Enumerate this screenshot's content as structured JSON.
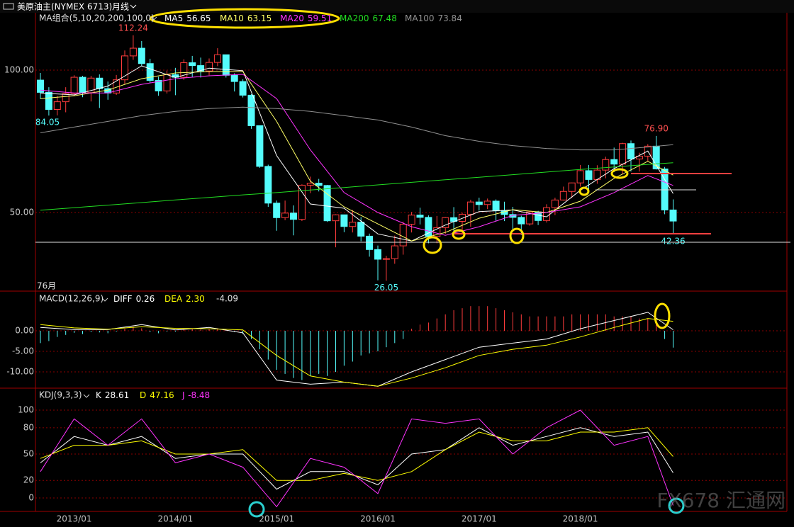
{
  "toolbar": {
    "symbol": "美原油主(NYMEX 6713)",
    "period": "月线"
  },
  "watermark": "FX678 汇通网",
  "chart_data": [
    {
      "type": "candlestick",
      "title": "MA组合(5,10,20,200,100,0)",
      "count_label": "76月",
      "categories": [
        null,
        null,
        null,
        null,
        "2013/01",
        null,
        null,
        null,
        null,
        null,
        null,
        null,
        null,
        null,
        null,
        null,
        "2014/01",
        null,
        null,
        null,
        null,
        null,
        null,
        null,
        null,
        null,
        null,
        null,
        "2015/01",
        null,
        null,
        null,
        null,
        null,
        null,
        null,
        null,
        null,
        null,
        null,
        "2016/01",
        null,
        null,
        null,
        null,
        null,
        null,
        null,
        null,
        null,
        null,
        null,
        "2017/01",
        null,
        null,
        null,
        null,
        null,
        null,
        null,
        null,
        null,
        null,
        null,
        "2018/01",
        null,
        null,
        null,
        null,
        null,
        null,
        null,
        null,
        null,
        null,
        null
      ],
      "open": [
        96.5,
        92.2,
        86.2,
        88.9,
        91.8,
        97.5,
        92.1,
        97.2,
        93.5,
        91.97,
        96.6,
        105.0,
        107.7,
        102.3,
        96.4,
        92.7,
        98.4,
        97.5,
        102.6,
        101.6,
        99.7,
        102.7,
        105.4,
        98.2,
        96.0,
        91.2,
        80.5,
        66.2,
        53.3,
        48.2,
        49.8,
        47.6,
        59.6,
        60.3,
        59.5,
        47.1,
        49.2,
        45.1,
        46.6,
        41.7,
        37.0,
        33.6,
        33.8,
        38.3,
        45.9,
        49.1,
        48.3,
        41.6,
        44.7,
        48.2,
        46.9,
        49.4,
        53.7,
        52.8,
        54.0,
        50.6,
        49.3,
        48.3,
        46.0,
        50.2,
        47.2,
        51.7,
        54.4,
        57.4,
        60.4,
        64.7,
        61.6,
        64.9,
        68.6,
        67.0,
        74.2,
        68.8,
        69.8,
        73.3,
        65.3,
        50.9
      ],
      "high": [
        99.0,
        94.0,
        91.0,
        94.0,
        98.2,
        98.0,
        98.0,
        98.5,
        96.0,
        98.3,
        106.9,
        112.24,
        110.2,
        104.0,
        97.7,
        99.8,
        100.8,
        103.8,
        105.0,
        104.4,
        104.1,
        107.7,
        105.2,
        98.9,
        96.8,
        91.6,
        80.6,
        66.8,
        54.2,
        54.2,
        52.5,
        59.9,
        62.6,
        61.8,
        59.7,
        49.4,
        49.0,
        50.9,
        48.4,
        42.6,
        38.4,
        34.8,
        41.9,
        46.8,
        50.2,
        51.7,
        49.0,
        48.8,
        48.4,
        51.9,
        49.9,
        54.5,
        55.2,
        54.9,
        54.6,
        53.8,
        52.0,
        48.9,
        50.4,
        50.6,
        52.9,
        55.2,
        59.1,
        60.5,
        66.7,
        66.7,
        66.6,
        69.6,
        72.8,
        74.5,
        75.3,
        71.0,
        74.0,
        76.9,
        66.0,
        54.6
      ],
      "low": [
        89.9,
        84.05,
        84.1,
        85.2,
        91.0,
        90.5,
        89.0,
        86.7,
        89.6,
        91.3,
        95.0,
        103.6,
        101.5,
        95.6,
        91.0,
        91.8,
        91.2,
        96.6,
        97.4,
        97.4,
        98.2,
        101.4,
        97.4,
        92.5,
        90.4,
        79.4,
        65.7,
        52.0,
        43.6,
        47.3,
        42.0,
        47.0,
        56.8,
        57.4,
        46.7,
        37.8,
        43.1,
        43.0,
        39.9,
        34.5,
        26.2,
        26.05,
        32.0,
        35.2,
        43.0,
        45.8,
        39.2,
        39.2,
        42.5,
        43.6,
        42.2,
        45.0,
        50.7,
        51.2,
        47.1,
        47.0,
        43.8,
        42.1,
        45.4,
        45.6,
        46.5,
        49.1,
        54.2,
        55.1,
        59.1,
        58.1,
        60.1,
        62.0,
        64.2,
        63.6,
        64.4,
        64.4,
        67.8,
        65.1,
        49.4,
        42.36
      ],
      "close": [
        92.2,
        86.2,
        88.9,
        91.8,
        97.5,
        92.1,
        97.2,
        93.5,
        91.97,
        96.6,
        105.0,
        107.7,
        102.3,
        96.4,
        92.7,
        98.4,
        97.5,
        102.6,
        101.6,
        99.7,
        102.7,
        105.4,
        98.2,
        96.0,
        91.2,
        80.5,
        66.2,
        53.3,
        48.2,
        49.8,
        47.6,
        59.6,
        60.3,
        59.5,
        47.1,
        49.2,
        45.1,
        46.6,
        41.7,
        37.0,
        33.6,
        33.8,
        38.3,
        45.9,
        49.1,
        48.3,
        41.6,
        44.7,
        48.2,
        46.9,
        49.4,
        53.7,
        52.8,
        54.0,
        50.6,
        49.3,
        48.3,
        46.0,
        50.2,
        47.2,
        51.7,
        54.4,
        57.4,
        60.4,
        64.7,
        61.6,
        64.9,
        68.6,
        67.0,
        74.2,
        68.8,
        69.8,
        73.3,
        65.3,
        50.9,
        47.0
      ],
      "high_labels": [
        null,
        null,
        null,
        null,
        null,
        null,
        null,
        null,
        null,
        null,
        null,
        "112.24",
        null,
        null,
        null,
        null,
        null,
        null,
        null,
        null,
        null,
        null,
        null,
        null,
        null,
        null,
        null,
        null,
        null,
        null,
        null,
        null,
        null,
        null,
        null,
        null,
        null,
        null,
        null,
        null,
        null,
        null,
        null,
        null,
        null,
        null,
        null,
        null,
        null,
        null,
        null,
        null,
        null,
        null,
        null,
        null,
        null,
        null,
        null,
        null,
        null,
        null,
        null,
        null,
        null,
        null,
        null,
        null,
        null,
        null,
        null,
        null,
        null,
        "76.90",
        null,
        null
      ],
      "low_labels": [
        null,
        "84.05",
        null,
        null,
        null,
        null,
        null,
        null,
        null,
        null,
        null,
        null,
        null,
        null,
        null,
        null,
        null,
        null,
        null,
        null,
        null,
        null,
        null,
        null,
        null,
        null,
        null,
        null,
        null,
        null,
        null,
        null,
        null,
        null,
        null,
        null,
        null,
        null,
        null,
        null,
        null,
        "26.05",
        null,
        null,
        null,
        null,
        null,
        null,
        null,
        null,
        null,
        null,
        null,
        null,
        null,
        null,
        null,
        null,
        null,
        null,
        null,
        null,
        null,
        null,
        null,
        null,
        null,
        null,
        null,
        null,
        null,
        null,
        null,
        null,
        null,
        "42.36"
      ],
      "up_color": "#ff3c3c",
      "down_color": "#54fcfc",
      "ylim": [
        22.4,
        119.9
      ],
      "yticks": [
        {
          "value": 100,
          "label": "100.00"
        },
        {
          "value": 50,
          "label": "50.00"
        }
      ],
      "grid": true,
      "series": [
        {
          "name": "MA5",
          "color": "#ffffff",
          "x": [
            0,
            4,
            8,
            12,
            16,
            20,
            24,
            28,
            32,
            36,
            40,
            44,
            48,
            52,
            56,
            60,
            64,
            68,
            72,
            75
          ],
          "values": [
            92,
            91.3,
            94.4,
            101.5,
            97.4,
            100.7,
            99.8,
            70,
            53,
            51.5,
            42.5,
            40,
            45.6,
            50.3,
            50.9,
            48.5,
            57.8,
            65.4,
            71.6,
            56.65
          ]
        },
        {
          "name": "MA10",
          "color": "#ffff66",
          "x": [
            0,
            4,
            8,
            12,
            16,
            20,
            24,
            28,
            32,
            36,
            40,
            44,
            48,
            52,
            56,
            60,
            64,
            68,
            72,
            75
          ],
          "values": [
            90,
            91,
            93,
            97,
            99,
            99.5,
            99.5,
            82,
            61,
            52,
            46,
            40,
            43,
            48,
            51,
            50,
            54,
            62,
            68,
            63.15
          ]
        },
        {
          "name": "MA20",
          "color": "#ff33ff",
          "x": [
            0,
            4,
            8,
            12,
            16,
            20,
            24,
            28,
            32,
            36,
            40,
            44,
            48,
            52,
            56,
            60,
            64,
            68,
            72,
            75
          ],
          "values": [
            93,
            92,
            92,
            95,
            97,
            98,
            98.5,
            90,
            72,
            57,
            50,
            45,
            42,
            45,
            49,
            50,
            52,
            57,
            63,
            59.51
          ]
        },
        {
          "name": "MA200",
          "color": "#22dd22",
          "x": [
            0,
            4,
            8,
            12,
            16,
            20,
            24,
            28,
            32,
            36,
            40,
            44,
            48,
            52,
            56,
            60,
            64,
            68,
            72,
            75
          ],
          "values": [
            50.8,
            51.7,
            52.6,
            53.5,
            54.4,
            55.3,
            56.2,
            57.0,
            57.9,
            58.8,
            59.7,
            60.6,
            61.5,
            62.4,
            63.3,
            64.2,
            65.1,
            66.0,
            66.9,
            67.48
          ]
        },
        {
          "name": "MA100",
          "color": "#909090",
          "x": [
            0,
            4,
            8,
            12,
            16,
            20,
            24,
            28,
            32,
            36,
            40,
            44,
            48,
            52,
            56,
            60,
            64,
            68,
            72,
            75
          ],
          "values": [
            78,
            80,
            82,
            84,
            85.5,
            86.5,
            87,
            86.5,
            85.5,
            84,
            82.5,
            80,
            77,
            75,
            73.5,
            72.5,
            72,
            72,
            73,
            73.84
          ]
        }
      ]
    },
    {
      "type": "macd",
      "title": "MACD(12,26,9)",
      "histogram": {
        "up_color": "#ff3c3c",
        "down_color": "#54fcfc",
        "values": [
          -3.0,
          -2.5,
          -1.5,
          -1.0,
          -0.5,
          -0.8,
          -0.3,
          -0.4,
          -0.6,
          -0.2,
          0.5,
          1.0,
          0.6,
          -0.3,
          -0.6,
          -0.2,
          -0.2,
          0.3,
          0.4,
          0.3,
          0.4,
          0.6,
          0.2,
          -0.3,
          -0.8,
          -2.0,
          -4.5,
          -7.0,
          -9.5,
          -10.5,
          -11.5,
          -12.0,
          -11.0,
          -10.5,
          -11.0,
          -10.0,
          -8.5,
          -7.5,
          -6.0,
          -5.5,
          -5.0,
          -4.0,
          -3.0,
          -2.0,
          0.5,
          1.5,
          2.0,
          3.0,
          4.0,
          5.0,
          5.5,
          6.0,
          6.0,
          6.0,
          5.5,
          5.0,
          4.5,
          4.0,
          3.5,
          3.5,
          3.5,
          3.5,
          3.5,
          4.0,
          4.0,
          4.0,
          4.0,
          4.0,
          3.5,
          3.5,
          3.5,
          3.0,
          3.0,
          2.0,
          -2.0,
          -4.09
        ]
      },
      "ylim": [
        -13.97,
        9.48
      ],
      "yticks": [
        {
          "value": 0,
          "label": "0.00"
        },
        {
          "value": -5,
          "label": "-5.00"
        },
        {
          "value": -10,
          "label": "-10.00"
        }
      ],
      "grid": true,
      "series": [
        {
          "name": "DIFF",
          "color": "#ffffff",
          "x": [
            0,
            4,
            8,
            12,
            16,
            20,
            24,
            28,
            32,
            36,
            40,
            44,
            48,
            52,
            56,
            60,
            64,
            68,
            72,
            75
          ],
          "values": [
            0.8,
            0.3,
            0.3,
            1.5,
            0.2,
            0.8,
            -0.5,
            -12,
            -13,
            -12.5,
            -13.5,
            -10,
            -7,
            -4,
            -3,
            -2,
            0.5,
            2.5,
            4.5,
            0.26
          ]
        },
        {
          "name": "DEA",
          "color": "#ffff00",
          "legend_label": "2.30",
          "x": [
            0,
            4,
            8,
            12,
            16,
            20,
            24,
            28,
            32,
            36,
            40,
            44,
            48,
            52,
            56,
            60,
            64,
            68,
            72,
            75
          ],
          "values": [
            1.5,
            0.7,
            0.4,
            1.0,
            0.6,
            0.5,
            0.2,
            -6,
            -11,
            -12.5,
            -13.5,
            -11.5,
            -9,
            -6,
            -4.5,
            -3.5,
            -1.5,
            0.8,
            3.0,
            2.3
          ]
        }
      ]
    },
    {
      "type": "line",
      "title": "KDJ(9,3,3)",
      "ylim": [
        -15.3,
        124.2
      ],
      "yticks": [
        100,
        80,
        50,
        20,
        0
      ],
      "grid": true,
      "series": [
        {
          "name": "K",
          "color": "#ffffff",
          "x": [
            0,
            4,
            8,
            12,
            16,
            20,
            24,
            28,
            32,
            36,
            40,
            44,
            48,
            52,
            56,
            60,
            64,
            68,
            72,
            75
          ],
          "values": [
            40,
            70,
            60,
            70,
            45,
            50,
            50,
            10,
            30,
            30,
            15,
            50,
            55,
            80,
            60,
            70,
            80,
            70,
            75,
            28.61
          ]
        },
        {
          "name": "D",
          "color": "#ffff00",
          "x": [
            0,
            4,
            8,
            12,
            16,
            20,
            24,
            28,
            32,
            36,
            40,
            44,
            48,
            52,
            56,
            60,
            64,
            68,
            72,
            75
          ],
          "values": [
            45,
            60,
            60,
            65,
            50,
            50,
            55,
            20,
            20,
            28,
            20,
            30,
            55,
            75,
            65,
            65,
            75,
            75,
            80,
            47.16
          ]
        },
        {
          "name": "J",
          "color": "#ff33ff",
          "x": [
            0,
            4,
            8,
            12,
            16,
            20,
            24,
            28,
            32,
            36,
            40,
            44,
            48,
            52,
            56,
            60,
            64,
            68,
            72,
            75
          ],
          "values": [
            30,
            90,
            60,
            90,
            40,
            50,
            35,
            -10,
            45,
            35,
            5,
            90,
            85,
            90,
            50,
            80,
            100,
            60,
            70,
            -8.48
          ]
        }
      ]
    }
  ]
}
